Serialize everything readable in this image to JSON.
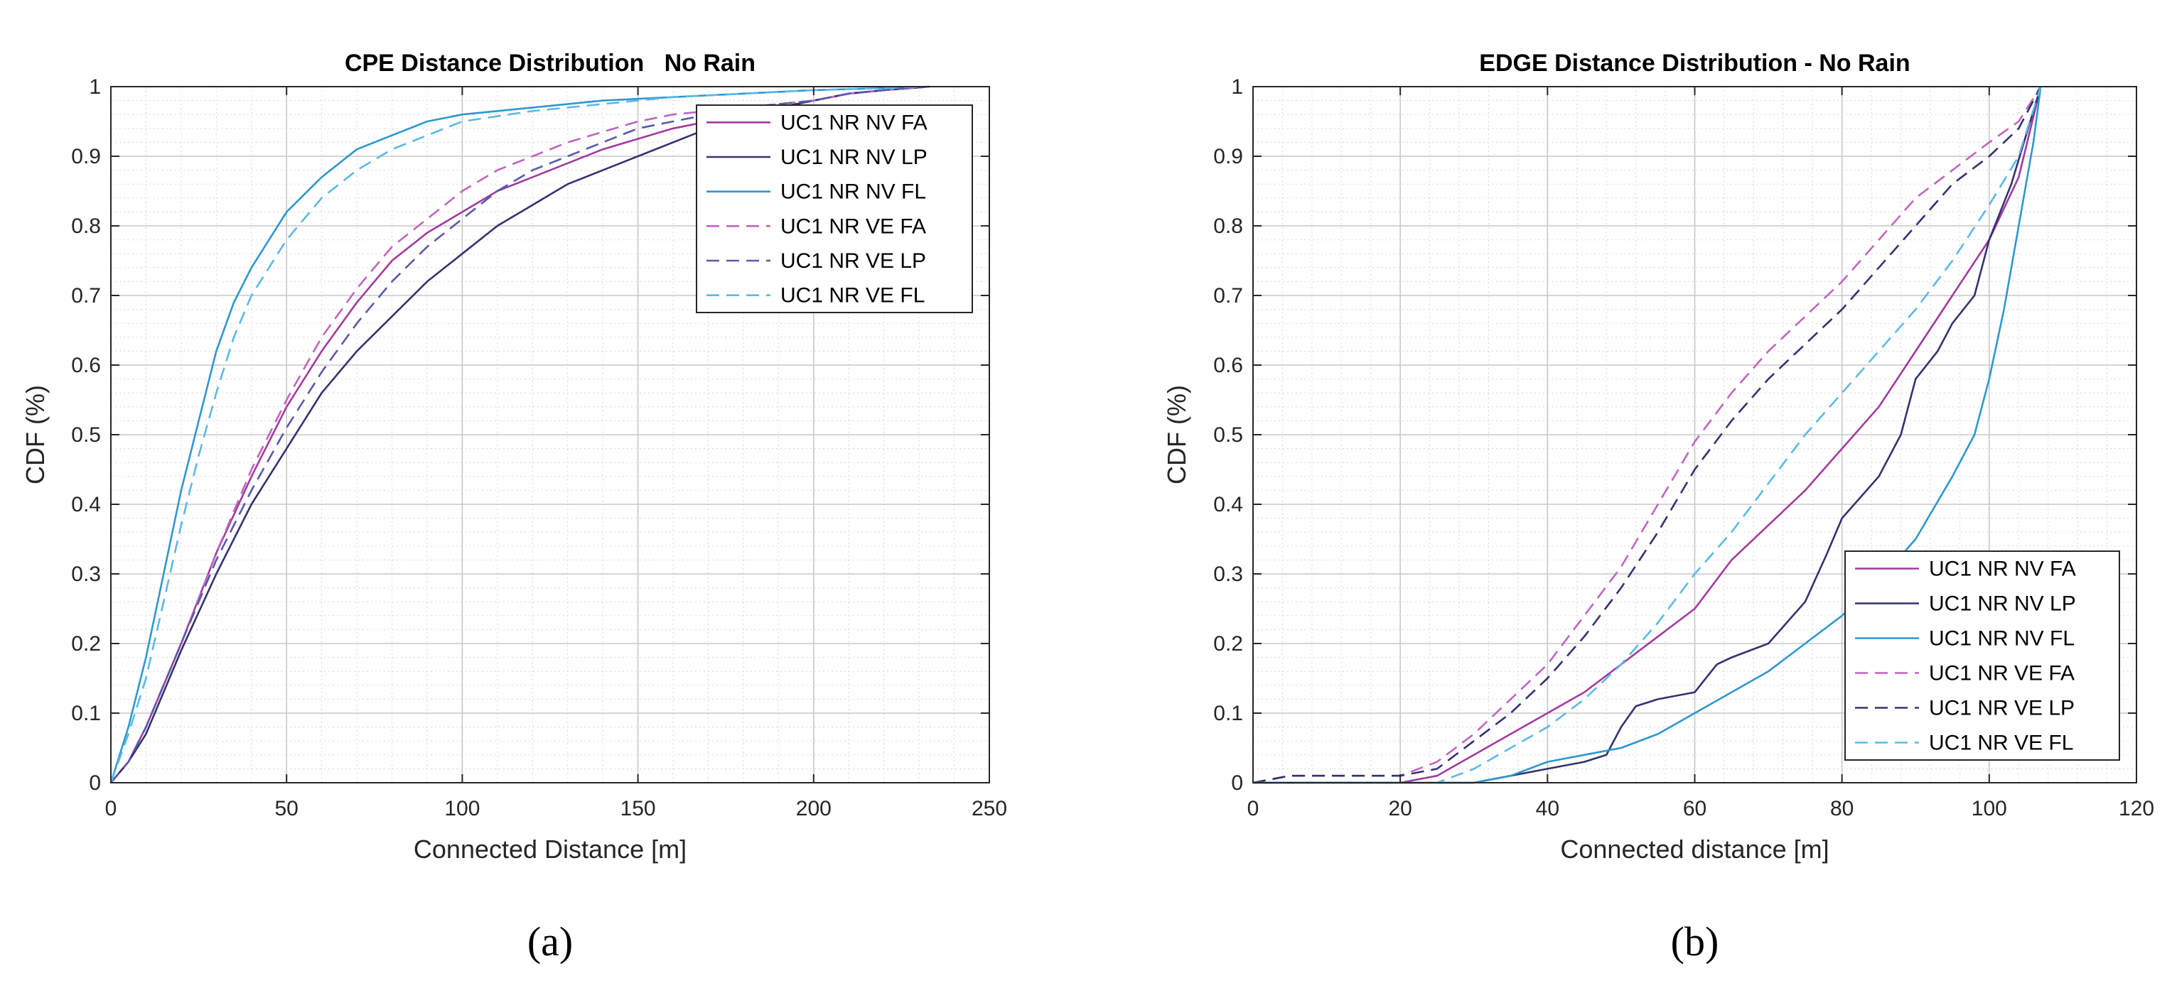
{
  "chart_data": [
    {
      "type": "line",
      "panel": "(a)",
      "title": "CPE Distance Distribution   No Rain",
      "xlabel": "Connected Distance [m]",
      "ylabel": "CDF (%)",
      "xlim": [
        0,
        250
      ],
      "ylim": [
        0,
        1
      ],
      "xticks": [
        0,
        50,
        100,
        150,
        200,
        250
      ],
      "xtick_labels": [
        "0",
        "50",
        "100",
        "150",
        "200",
        "250"
      ],
      "yticks": [
        0,
        0.1,
        0.2,
        0.3,
        0.4,
        0.5,
        0.6,
        0.7,
        0.8,
        0.9,
        1
      ],
      "ytick_labels": [
        "0",
        "0.1",
        "0.2",
        "0.3",
        "0.4",
        "0.5",
        "0.6",
        "0.7",
        "0.8",
        "0.9",
        "1"
      ],
      "grid": true,
      "legend_position": "top-right",
      "series": [
        {
          "name": "UC1 NR NV FA",
          "color": "#a23a9f",
          "dash": false,
          "x": [
            0,
            5,
            10,
            20,
            30,
            40,
            50,
            60,
            70,
            80,
            90,
            100,
            110,
            120,
            130,
            140,
            150,
            160,
            170,
            180,
            190,
            200,
            210,
            220,
            233
          ],
          "y": [
            0,
            0.03,
            0.08,
            0.2,
            0.33,
            0.44,
            0.54,
            0.62,
            0.69,
            0.75,
            0.79,
            0.82,
            0.85,
            0.87,
            0.89,
            0.91,
            0.925,
            0.94,
            0.95,
            0.96,
            0.97,
            0.98,
            0.99,
            0.995,
            1
          ]
        },
        {
          "name": "UC1 NR NV LP",
          "color": "#343270",
          "dash": false,
          "x": [
            0,
            5,
            10,
            20,
            30,
            40,
            50,
            60,
            70,
            80,
            90,
            100,
            110,
            120,
            130,
            140,
            150,
            160,
            170,
            180,
            190,
            200,
            210,
            220,
            233
          ],
          "y": [
            0,
            0.03,
            0.07,
            0.19,
            0.3,
            0.4,
            0.48,
            0.56,
            0.62,
            0.67,
            0.72,
            0.76,
            0.8,
            0.83,
            0.86,
            0.88,
            0.9,
            0.92,
            0.94,
            0.96,
            0.97,
            0.98,
            0.99,
            0.995,
            1
          ]
        },
        {
          "name": "UC1 NR NV FL",
          "color": "#2d98cf",
          "dash": false,
          "x": [
            0,
            5,
            10,
            15,
            20,
            25,
            30,
            35,
            40,
            50,
            60,
            70,
            80,
            90,
            100,
            120,
            140,
            160,
            180,
            200,
            220,
            233
          ],
          "y": [
            0,
            0.08,
            0.18,
            0.3,
            0.42,
            0.52,
            0.62,
            0.69,
            0.74,
            0.82,
            0.87,
            0.91,
            0.93,
            0.95,
            0.96,
            0.97,
            0.98,
            0.985,
            0.99,
            0.995,
            0.998,
            1
          ]
        },
        {
          "name": "UC1 NR VE FA",
          "color": "#c065bf",
          "dash": true,
          "x": [
            0,
            5,
            10,
            20,
            30,
            40,
            50,
            60,
            70,
            80,
            90,
            100,
            110,
            120,
            130,
            140,
            150,
            160,
            170,
            180,
            190,
            200,
            210,
            220,
            233
          ],
          "y": [
            0,
            0.03,
            0.08,
            0.2,
            0.33,
            0.45,
            0.55,
            0.64,
            0.71,
            0.77,
            0.81,
            0.85,
            0.88,
            0.9,
            0.92,
            0.935,
            0.95,
            0.96,
            0.965,
            0.97,
            0.975,
            0.98,
            0.99,
            0.995,
            1
          ]
        },
        {
          "name": "UC1 NR VE LP",
          "color": "#5a5aa8",
          "dash": true,
          "x": [
            0,
            5,
            10,
            20,
            30,
            40,
            50,
            60,
            70,
            80,
            90,
            100,
            110,
            120,
            130,
            140,
            150,
            160,
            170,
            180,
            190,
            200,
            210,
            220,
            233
          ],
          "y": [
            0,
            0.03,
            0.08,
            0.2,
            0.32,
            0.42,
            0.51,
            0.59,
            0.66,
            0.72,
            0.77,
            0.81,
            0.85,
            0.88,
            0.9,
            0.92,
            0.94,
            0.95,
            0.96,
            0.97,
            0.975,
            0.98,
            0.99,
            0.995,
            1
          ]
        },
        {
          "name": "UC1 NR VE FL",
          "color": "#5bb9e6",
          "dash": true,
          "x": [
            0,
            5,
            10,
            15,
            20,
            25,
            30,
            35,
            40,
            50,
            60,
            70,
            80,
            90,
            100,
            120,
            140,
            160,
            180,
            200,
            220,
            233
          ],
          "y": [
            0,
            0.07,
            0.15,
            0.26,
            0.37,
            0.47,
            0.56,
            0.64,
            0.7,
            0.78,
            0.84,
            0.88,
            0.91,
            0.93,
            0.95,
            0.965,
            0.975,
            0.985,
            0.99,
            0.995,
            0.998,
            1
          ]
        }
      ]
    },
    {
      "type": "line",
      "panel": "(b)",
      "title": "EDGE Distance Distribution - No Rain",
      "xlabel": "Connected distance [m]",
      "ylabel": "CDF (%)",
      "xlim": [
        0,
        120
      ],
      "ylim": [
        0,
        1
      ],
      "xticks": [
        0,
        20,
        40,
        60,
        80,
        100,
        120
      ],
      "xtick_labels": [
        "0",
        "20",
        "40",
        "60",
        "80",
        "100",
        "120"
      ],
      "yticks": [
        0,
        0.1,
        0.2,
        0.3,
        0.4,
        0.5,
        0.6,
        0.7,
        0.8,
        0.9,
        1
      ],
      "ytick_labels": [
        "0",
        "0.1",
        "0.2",
        "0.3",
        "0.4",
        "0.5",
        "0.6",
        "0.7",
        "0.8",
        "0.9",
        "1"
      ],
      "grid": true,
      "legend_position": "bottom-right",
      "series": [
        {
          "name": "UC1 NR NV FA",
          "color": "#a23a9f",
          "dash": false,
          "x": [
            0,
            20,
            25,
            30,
            35,
            40,
            45,
            50,
            55,
            60,
            65,
            70,
            75,
            80,
            85,
            90,
            95,
            100,
            104,
            107
          ],
          "y": [
            0,
            0,
            0.01,
            0.04,
            0.07,
            0.1,
            0.13,
            0.17,
            0.21,
            0.25,
            0.32,
            0.37,
            0.42,
            0.48,
            0.54,
            0.62,
            0.7,
            0.78,
            0.87,
            1
          ]
        },
        {
          "name": "UC1 NR NV LP",
          "color": "#343270",
          "dash": false,
          "x": [
            0,
            30,
            35,
            40,
            45,
            48,
            50,
            52,
            55,
            60,
            63,
            65,
            70,
            75,
            78,
            80,
            85,
            88,
            90,
            93,
            95,
            98,
            100,
            103,
            105,
            107
          ],
          "y": [
            0,
            0,
            0.01,
            0.02,
            0.03,
            0.04,
            0.08,
            0.11,
            0.12,
            0.13,
            0.17,
            0.18,
            0.2,
            0.26,
            0.33,
            0.38,
            0.44,
            0.5,
            0.58,
            0.62,
            0.66,
            0.7,
            0.78,
            0.86,
            0.93,
            1
          ]
        },
        {
          "name": "UC1 NR NV FL",
          "color": "#2d98cf",
          "dash": false,
          "x": [
            0,
            30,
            35,
            40,
            45,
            50,
            55,
            60,
            65,
            70,
            75,
            80,
            85,
            90,
            95,
            98,
            100,
            102,
            104,
            106,
            107
          ],
          "y": [
            0,
            0,
            0.01,
            0.03,
            0.04,
            0.05,
            0.07,
            0.1,
            0.13,
            0.16,
            0.2,
            0.24,
            0.29,
            0.35,
            0.44,
            0.5,
            0.58,
            0.68,
            0.8,
            0.92,
            1
          ]
        },
        {
          "name": "UC1 NR VE FA",
          "color": "#c065bf",
          "dash": true,
          "x": [
            0,
            5,
            20,
            25,
            30,
            35,
            40,
            45,
            50,
            55,
            60,
            65,
            70,
            75,
            80,
            85,
            90,
            95,
            100,
            104,
            107
          ],
          "y": [
            0,
            0.01,
            0.01,
            0.03,
            0.07,
            0.12,
            0.17,
            0.24,
            0.31,
            0.4,
            0.49,
            0.56,
            0.62,
            0.67,
            0.72,
            0.78,
            0.84,
            0.88,
            0.92,
            0.95,
            1
          ]
        },
        {
          "name": "UC1 NR VE LP",
          "color": "#343270",
          "dash": true,
          "x": [
            0,
            5,
            20,
            25,
            30,
            35,
            40,
            45,
            50,
            55,
            60,
            65,
            70,
            75,
            80,
            85,
            90,
            95,
            100,
            104,
            107
          ],
          "y": [
            0,
            0.01,
            0.01,
            0.02,
            0.06,
            0.1,
            0.15,
            0.21,
            0.28,
            0.36,
            0.45,
            0.52,
            0.58,
            0.63,
            0.68,
            0.74,
            0.8,
            0.86,
            0.9,
            0.94,
            1
          ]
        },
        {
          "name": "UC1 NR VE FL",
          "color": "#5bb9e6",
          "dash": true,
          "x": [
            0,
            25,
            30,
            35,
            40,
            45,
            50,
            55,
            60,
            65,
            70,
            75,
            80,
            85,
            90,
            95,
            100,
            104,
            107
          ],
          "y": [
            0,
            0,
            0.02,
            0.05,
            0.08,
            0.12,
            0.17,
            0.23,
            0.3,
            0.36,
            0.43,
            0.5,
            0.56,
            0.62,
            0.68,
            0.75,
            0.83,
            0.9,
            1
          ]
        }
      ]
    }
  ]
}
